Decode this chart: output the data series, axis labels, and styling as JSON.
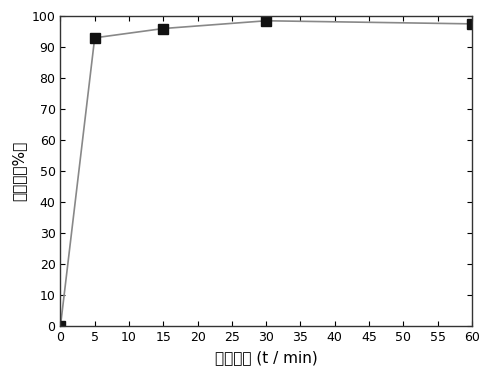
{
  "x": [
    0,
    5,
    15,
    30,
    60
  ],
  "y": [
    0,
    93.0,
    96.0,
    98.5,
    97.5
  ],
  "xlabel": "反应时间 (t / min)",
  "ylabel": "去除率（%）",
  "xlim": [
    0,
    60
  ],
  "ylim": [
    0,
    100
  ],
  "xticks": [
    0,
    5,
    10,
    15,
    20,
    25,
    30,
    35,
    40,
    45,
    50,
    55,
    60
  ],
  "yticks": [
    0,
    10,
    20,
    30,
    40,
    50,
    60,
    70,
    80,
    90,
    100
  ],
  "line_color": "#888888",
  "marker_color": "#111111",
  "marker": "s",
  "marker_size": 7,
  "line_width": 1.2,
  "bg_color": "#ffffff",
  "plot_bg_color": "#ffffff",
  "linestyle": "-"
}
